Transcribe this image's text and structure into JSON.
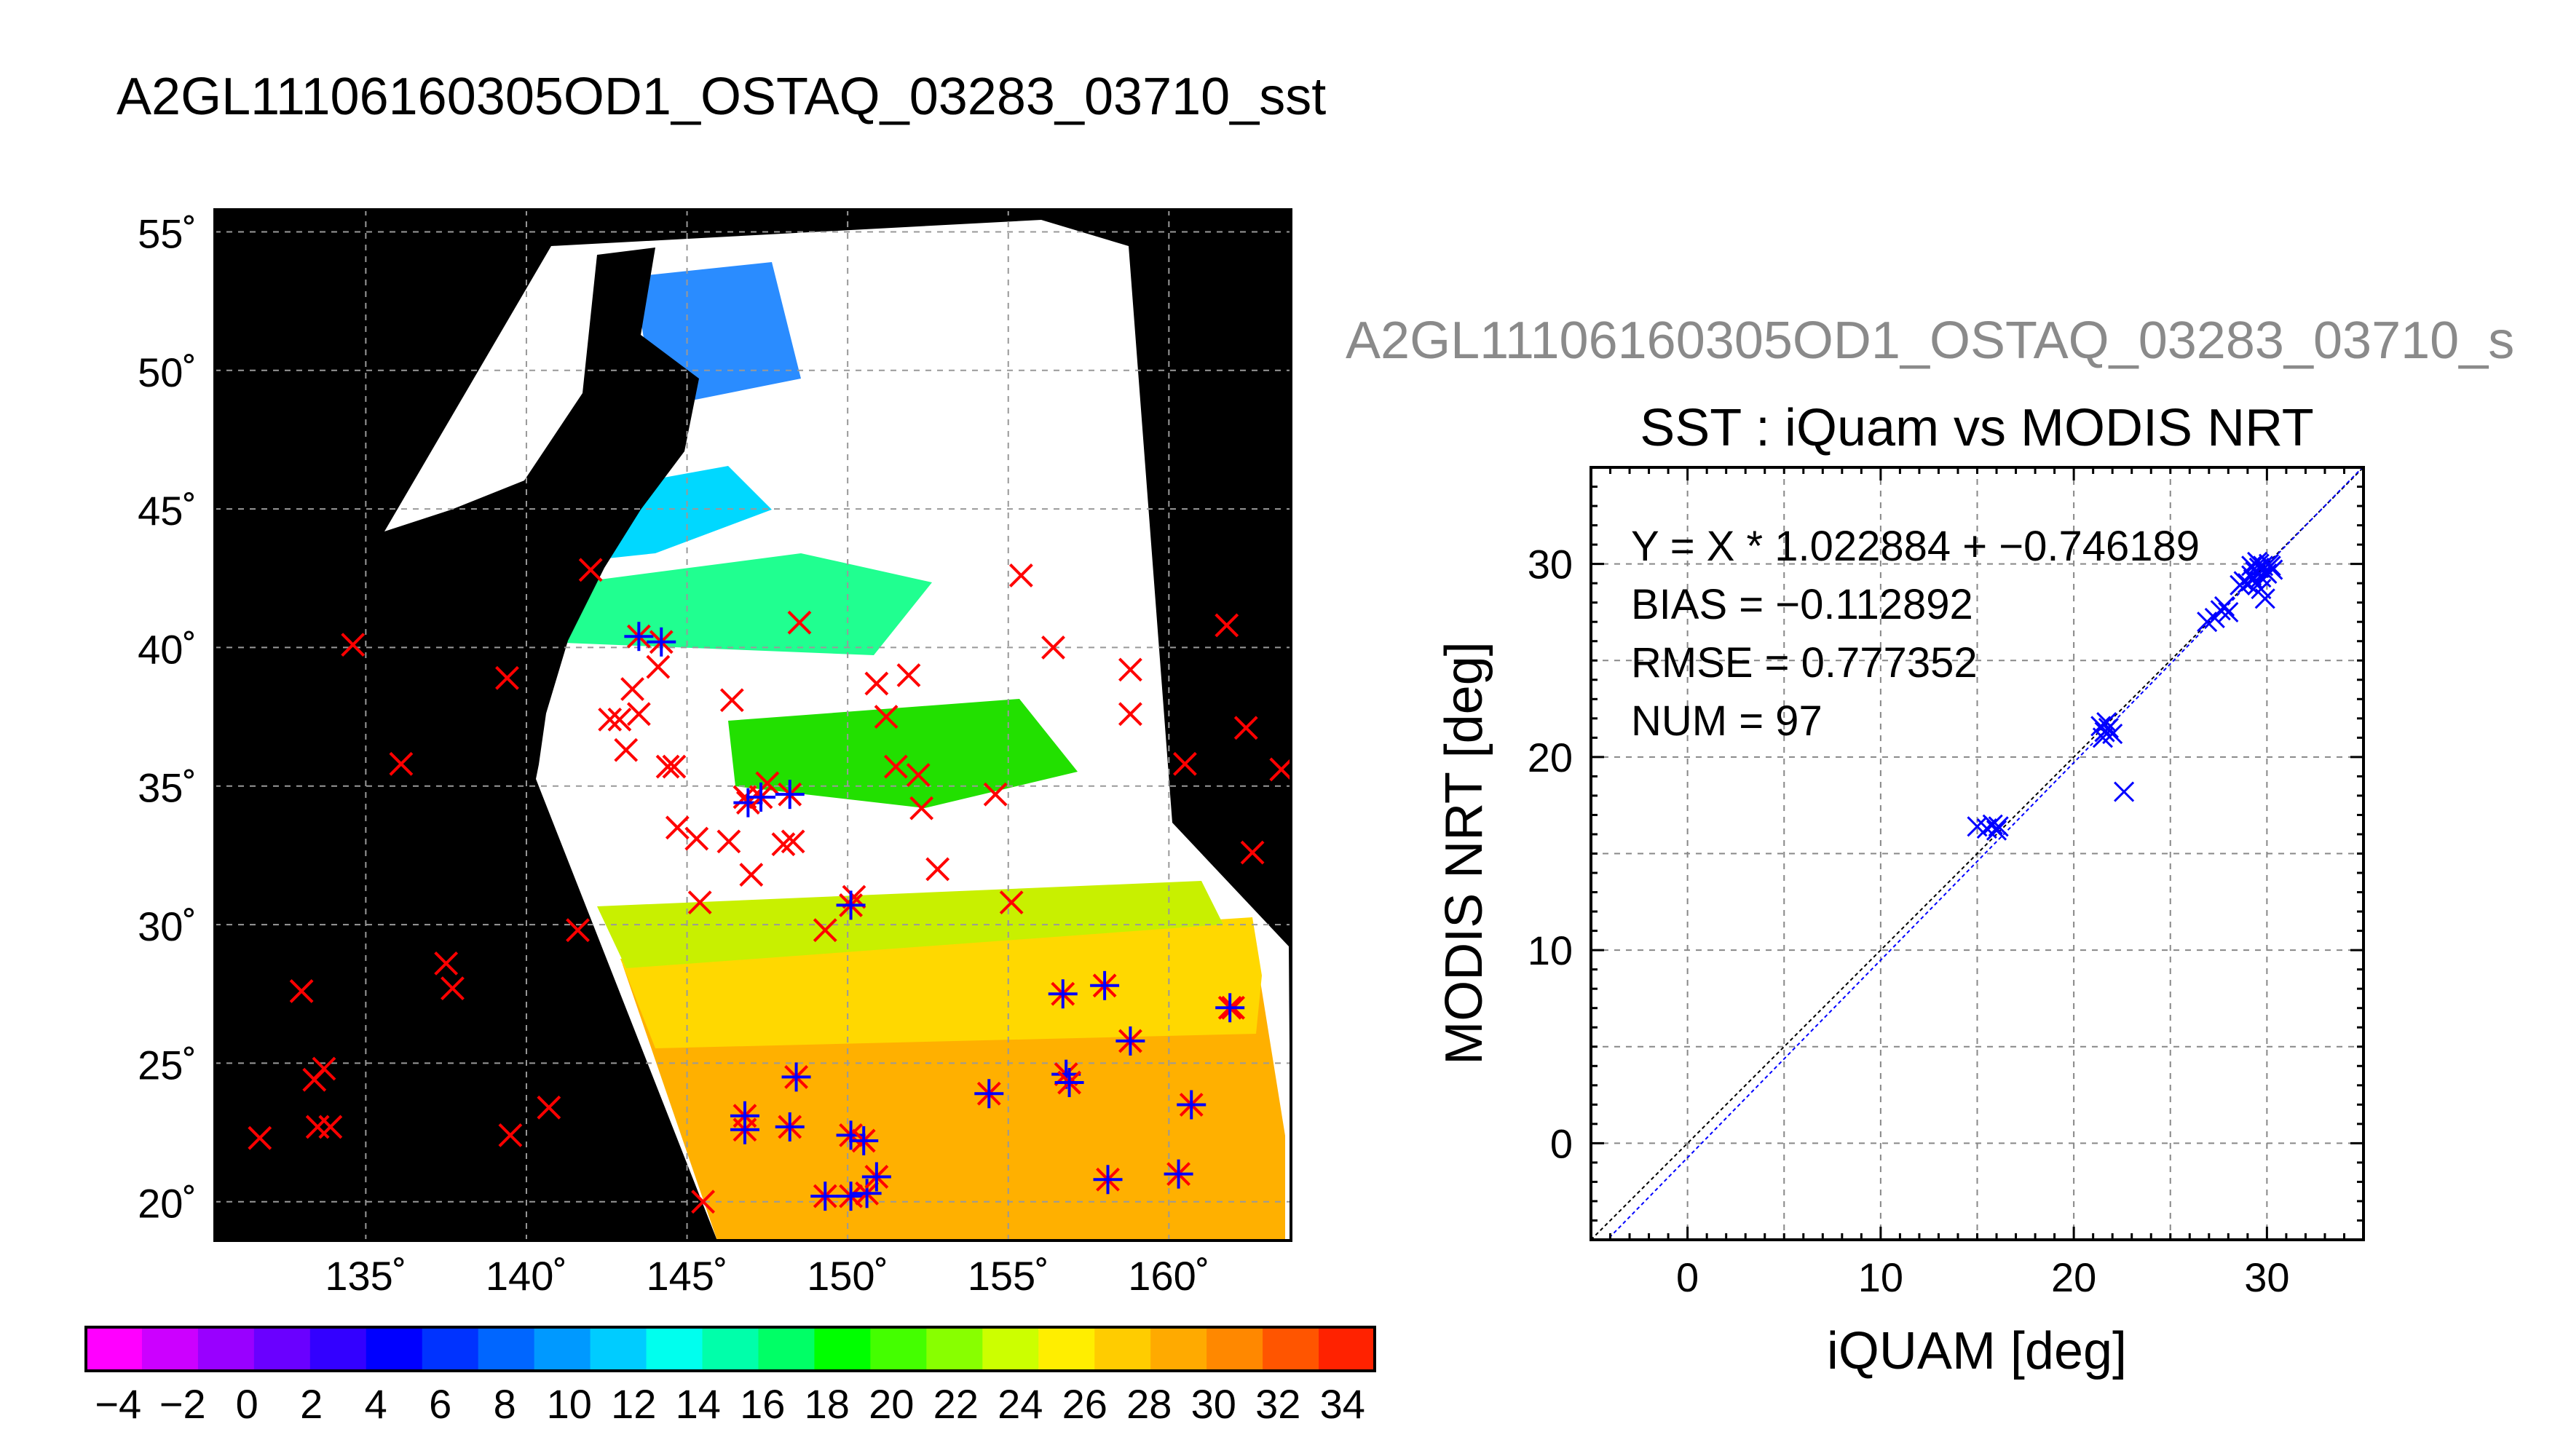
{
  "page_title": "A2GL11106160305OD1_OSTAQ_03283_03710_sst",
  "scatter_caption": "A2GL11106160305OD1_OSTAQ_03283_03710_s",
  "colors": {
    "map_background": "#000000",
    "cloud_mask": "#ffffff",
    "insitu_marker": "#ff0000",
    "matchup_marker": "#0000ff",
    "scatter_marker": "#0000ff",
    "fit_line": "#0000ff",
    "identity_line": "#000000"
  },
  "map": {
    "lat_ticks": [
      "55˚",
      "50˚",
      "45˚",
      "40˚",
      "35˚",
      "30˚",
      "25˚",
      "20˚"
    ],
    "lon_ticks": [
      "135˚",
      "140˚",
      "145˚",
      "150˚",
      "155˚",
      "160˚"
    ],
    "colorbar_ticks": [
      "−4",
      "−2",
      "0",
      "2",
      "4",
      "6",
      "8",
      "10",
      "12",
      "14",
      "16",
      "18",
      "20",
      "22",
      "24",
      "26",
      "28",
      "30",
      "32",
      "34"
    ],
    "colorbar_range": [
      -5,
      35
    ],
    "colorbar_colors": [
      "#ff00ff",
      "#cc00ff",
      "#9900ff",
      "#6a00ff",
      "#3300ff",
      "#0000ff",
      "#0033ff",
      "#0066ff",
      "#0099ff",
      "#00ccff",
      "#00ffee",
      "#00ffaa",
      "#00ff66",
      "#00ff00",
      "#44ff00",
      "#88ff00",
      "#ccff00",
      "#ffee00",
      "#ffcc00",
      "#ffaa00",
      "#ff8800",
      "#ff5500",
      "#ff2200"
    ],
    "insitu_points": [
      [
        131.7,
        22.3
      ],
      [
        133,
        27.6
      ],
      [
        133.4,
        24.4
      ],
      [
        133.7,
        24.8
      ],
      [
        133.5,
        22.7
      ],
      [
        133.9,
        22.7
      ],
      [
        134.6,
        40.1
      ],
      [
        136.1,
        35.8
      ],
      [
        137.5,
        28.6
      ],
      [
        137.7,
        27.7
      ],
      [
        139.4,
        38.9
      ],
      [
        139.5,
        22.4
      ],
      [
        140.7,
        23.4
      ],
      [
        141.6,
        29.8
      ],
      [
        142,
        42.8
      ],
      [
        142.6,
        37.4
      ],
      [
        142.9,
        37.4
      ],
      [
        143.1,
        36.3
      ],
      [
        143.3,
        38.5
      ],
      [
        143.5,
        37.6
      ],
      [
        144.1,
        39.3
      ],
      [
        144.4,
        35.7
      ],
      [
        144.6,
        35.7
      ],
      [
        144.7,
        33.5
      ],
      [
        145.3,
        33.1
      ],
      [
        145.4,
        30.8
      ],
      [
        145.5,
        20
      ],
      [
        146.3,
        33
      ],
      [
        146.4,
        38.1
      ],
      [
        146.8,
        34.6
      ],
      [
        147,
        31.8
      ],
      [
        147.5,
        35.1
      ],
      [
        148,
        32.9
      ],
      [
        148.3,
        33
      ],
      [
        148.5,
        40.9
      ],
      [
        149.3,
        29.8
      ],
      [
        150.2,
        31
      ],
      [
        150.9,
        38.7
      ],
      [
        151.2,
        37.5
      ],
      [
        151.5,
        35.7
      ],
      [
        151.9,
        39
      ],
      [
        152.2,
        35.4
      ],
      [
        152.3,
        34.2
      ],
      [
        152.8,
        32
      ],
      [
        154.6,
        34.7
      ],
      [
        155.1,
        30.8
      ],
      [
        155.4,
        42.6
      ],
      [
        156.4,
        40
      ],
      [
        158.8,
        37.6
      ],
      [
        158.8,
        39.2
      ],
      [
        160.5,
        35.8
      ],
      [
        161.8,
        40.8
      ],
      [
        162.4,
        37.1
      ],
      [
        162.6,
        32.6
      ],
      [
        163.5,
        35.6
      ],
      [
        162,
        27
      ]
    ],
    "matchup_points": [
      [
        143.5,
        40.4
      ],
      [
        144.2,
        40.2
      ],
      [
        146.9,
        34.4
      ],
      [
        147.3,
        34.6
      ],
      [
        148.2,
        34.7
      ],
      [
        150.1,
        30.7
      ],
      [
        146.8,
        23.1
      ],
      [
        146.8,
        22.6
      ],
      [
        148.2,
        22.7
      ],
      [
        148.4,
        24.5
      ],
      [
        149.3,
        20.2
      ],
      [
        150.1,
        22.4
      ],
      [
        150.5,
        22.2
      ],
      [
        150.1,
        20.2
      ],
      [
        150.6,
        20.3
      ],
      [
        150.9,
        20.9
      ],
      [
        154.4,
        23.9
      ],
      [
        156.7,
        27.5
      ],
      [
        156.8,
        24.6
      ],
      [
        156.9,
        24.3
      ],
      [
        158,
        27.8
      ],
      [
        158.1,
        20.8
      ],
      [
        158.8,
        25.8
      ],
      [
        160.3,
        21
      ],
      [
        160.7,
        23.5
      ],
      [
        161.9,
        27
      ]
    ]
  },
  "chart_data": {
    "type": "scatter",
    "title": "SST : iQuam vs MODIS NRT",
    "xlabel": "iQUAM [deg]",
    "ylabel": "MODIS NRT [deg]",
    "xlim": [
      -5,
      35
    ],
    "ylim": [
      -5,
      35
    ],
    "x_ticks": [
      "0",
      "10",
      "20",
      "30"
    ],
    "y_ticks": [
      "0",
      "10",
      "20",
      "30"
    ],
    "grid": true,
    "annotations": [
      "Y = X * 1.022884 + −0.746189",
      "BIAS = −0.112892",
      "RMSE = 0.777352",
      "NUM = 97"
    ],
    "fit": {
      "slope": 1.022884,
      "intercept": -0.746189
    },
    "series": [
      {
        "points": [
          [
            15.0,
            16.4
          ],
          [
            15.5,
            16.3
          ],
          [
            15.8,
            16.5
          ],
          [
            16.0,
            16.2
          ],
          [
            16.1,
            16.4
          ],
          [
            21.4,
            21.6
          ],
          [
            21.5,
            21.0
          ],
          [
            21.6,
            21.3
          ],
          [
            21.7,
            21.8
          ],
          [
            21.8,
            21.5
          ],
          [
            22.0,
            21.2
          ],
          [
            22.6,
            18.2
          ],
          [
            26.9,
            27.0
          ],
          [
            27.3,
            27.2
          ],
          [
            27.6,
            27.6
          ],
          [
            27.8,
            27.8
          ],
          [
            28.0,
            27.5
          ],
          [
            28.6,
            28.9
          ],
          [
            28.8,
            29.1
          ],
          [
            29.0,
            29.0
          ],
          [
            29.2,
            29.4
          ],
          [
            29.3,
            29.2
          ],
          [
            29.4,
            29.6
          ],
          [
            29.5,
            28.9
          ],
          [
            29.6,
            29.8
          ],
          [
            29.6,
            30.0
          ],
          [
            29.7,
            29.3
          ],
          [
            29.8,
            29.9
          ],
          [
            29.9,
            29.6
          ],
          [
            29.9,
            28.2
          ],
          [
            30.0,
            29.5
          ],
          [
            30.1,
            30.0
          ],
          [
            30.2,
            29.9
          ],
          [
            29.5,
            30.1
          ],
          [
            29.7,
            28.7
          ],
          [
            30.3,
            29.7
          ],
          [
            29.2,
            29.9
          ]
        ]
      }
    ]
  }
}
